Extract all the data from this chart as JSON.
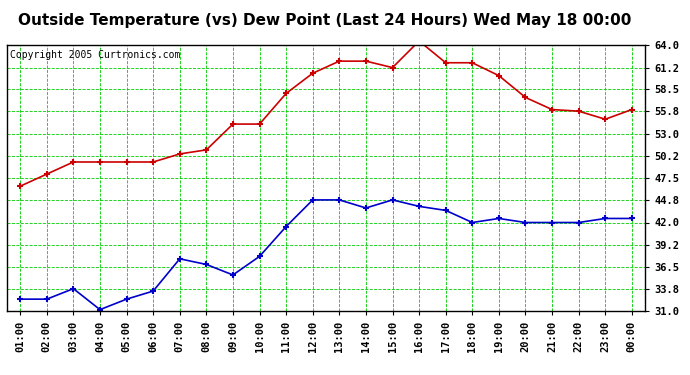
{
  "title": "Outside Temperature (vs) Dew Point (Last 24 Hours) Wed May 18 00:00",
  "copyright": "Copyright 2005 Curtronics.com",
  "x_labels": [
    "01:00",
    "02:00",
    "03:00",
    "04:00",
    "05:00",
    "06:00",
    "07:00",
    "08:00",
    "09:00",
    "10:00",
    "11:00",
    "12:00",
    "13:00",
    "14:00",
    "15:00",
    "16:00",
    "17:00",
    "18:00",
    "19:00",
    "20:00",
    "21:00",
    "22:00",
    "23:00",
    "00:00"
  ],
  "y_ticks": [
    31.0,
    33.8,
    36.5,
    39.2,
    42.0,
    44.8,
    47.5,
    50.2,
    53.0,
    55.8,
    58.5,
    61.2,
    64.0
  ],
  "y_min": 31.0,
  "y_max": 64.0,
  "red_line": [
    46.5,
    48.0,
    49.5,
    49.5,
    49.5,
    49.5,
    50.5,
    51.0,
    54.2,
    54.2,
    58.0,
    60.5,
    62.0,
    62.0,
    61.2,
    64.5,
    61.8,
    61.8,
    60.2,
    57.5,
    56.0,
    55.8,
    54.8,
    56.0
  ],
  "blue_line": [
    32.5,
    32.5,
    33.8,
    31.2,
    32.5,
    33.5,
    37.5,
    36.8,
    35.5,
    37.8,
    41.5,
    44.8,
    44.8,
    43.8,
    44.8,
    44.0,
    43.5,
    42.0,
    42.5,
    42.0,
    42.0,
    42.0,
    42.5,
    42.5
  ],
  "red_color": "#cc0000",
  "blue_color": "#0000cc",
  "bg_color": "#ffffff",
  "plot_bg_color": "#ffffff",
  "grid_color": "#00cc00",
  "title_fontsize": 11,
  "copyright_fontsize": 7,
  "tick_fontsize": 7.5
}
